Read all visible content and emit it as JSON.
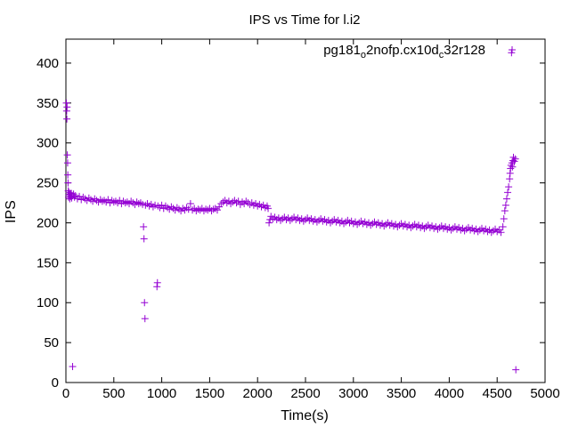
{
  "chart_data": {
    "type": "scatter",
    "title": "IPS vs Time for l.i2",
    "xlabel": "Time(s)",
    "ylabel": "IPS",
    "xlim": [
      0,
      5000
    ],
    "ylim": [
      0,
      430
    ],
    "xticks": [
      0,
      500,
      1000,
      1500,
      2000,
      2500,
      3000,
      3500,
      4000,
      4500,
      5000
    ],
    "yticks": [
      0,
      50,
      100,
      150,
      200,
      250,
      300,
      350,
      400
    ],
    "grid": false,
    "legend": {
      "placement": "top-right",
      "entries": [
        "pg181_o2nofp.cx10d_c32r128"
      ]
    },
    "legend_parts": [
      {
        "text": "pg181",
        "sub": false
      },
      {
        "text": "o",
        "sub": true
      },
      {
        "text": "2nofp.cx10d",
        "sub": false
      },
      {
        "text": "c",
        "sub": true
      },
      {
        "text": "32r128",
        "sub": false
      }
    ],
    "series": [
      {
        "name": "pg181_o2nofp.cx10d_c32r128",
        "color": "#9400d3",
        "marker": "plus",
        "points": [
          [
            5,
            350
          ],
          [
            8,
            340
          ],
          [
            10,
            330
          ],
          [
            12,
            345
          ],
          [
            15,
            285
          ],
          [
            18,
            275
          ],
          [
            20,
            260
          ],
          [
            22,
            250
          ],
          [
            25,
            240
          ],
          [
            28,
            232
          ],
          [
            30,
            235
          ],
          [
            35,
            238
          ],
          [
            40,
            230
          ],
          [
            45,
            236
          ],
          [
            50,
            233
          ],
          [
            55,
            237
          ],
          [
            60,
            231
          ],
          [
            65,
            234
          ],
          [
            70,
            20
          ],
          [
            80,
            236
          ],
          [
            90,
            232
          ],
          [
            100,
            234
          ],
          [
            120,
            230
          ],
          [
            140,
            233
          ],
          [
            160,
            229
          ],
          [
            180,
            232
          ],
          [
            200,
            230
          ],
          [
            220,
            228
          ],
          [
            240,
            231
          ],
          [
            260,
            229
          ],
          [
            280,
            227
          ],
          [
            300,
            230
          ],
          [
            320,
            228
          ],
          [
            340,
            226
          ],
          [
            360,
            229
          ],
          [
            380,
            227
          ],
          [
            400,
            228
          ],
          [
            420,
            226
          ],
          [
            440,
            229
          ],
          [
            460,
            225
          ],
          [
            480,
            228
          ],
          [
            500,
            226
          ],
          [
            520,
            227
          ],
          [
            540,
            225
          ],
          [
            560,
            228
          ],
          [
            580,
            224
          ],
          [
            600,
            227
          ],
          [
            620,
            225
          ],
          [
            640,
            226
          ],
          [
            660,
            224
          ],
          [
            680,
            227
          ],
          [
            700,
            225
          ],
          [
            720,
            223
          ],
          [
            740,
            226
          ],
          [
            760,
            224
          ],
          [
            780,
            225
          ],
          [
            800,
            223
          ],
          [
            810,
            195
          ],
          [
            815,
            180
          ],
          [
            820,
            100
          ],
          [
            825,
            80
          ],
          [
            830,
            222
          ],
          [
            850,
            224
          ],
          [
            870,
            221
          ],
          [
            890,
            223
          ],
          [
            910,
            220
          ],
          [
            930,
            222
          ],
          [
            950,
            120
          ],
          [
            955,
            125
          ],
          [
            960,
            221
          ],
          [
            980,
            219
          ],
          [
            1000,
            222
          ],
          [
            1020,
            218
          ],
          [
            1040,
            221
          ],
          [
            1060,
            219
          ],
          [
            1080,
            217
          ],
          [
            1100,
            220
          ],
          [
            1120,
            218
          ],
          [
            1140,
            216
          ],
          [
            1160,
            219
          ],
          [
            1180,
            217
          ],
          [
            1200,
            215
          ],
          [
            1220,
            218
          ],
          [
            1240,
            216
          ],
          [
            1260,
            219
          ],
          [
            1280,
            217
          ],
          [
            1300,
            224
          ],
          [
            1320,
            216
          ],
          [
            1340,
            218
          ],
          [
            1360,
            215
          ],
          [
            1380,
            217
          ],
          [
            1400,
            216
          ],
          [
            1420,
            218
          ],
          [
            1440,
            215
          ],
          [
            1460,
            217
          ],
          [
            1480,
            216
          ],
          [
            1500,
            218
          ],
          [
            1520,
            215
          ],
          [
            1540,
            217
          ],
          [
            1560,
            218
          ],
          [
            1580,
            216
          ],
          [
            1600,
            220
          ],
          [
            1620,
            224
          ],
          [
            1640,
            226
          ],
          [
            1660,
            228
          ],
          [
            1680,
            225
          ],
          [
            1700,
            227
          ],
          [
            1720,
            224
          ],
          [
            1740,
            226
          ],
          [
            1760,
            228
          ],
          [
            1780,
            225
          ],
          [
            1800,
            227
          ],
          [
            1820,
            223
          ],
          [
            1840,
            226
          ],
          [
            1860,
            224
          ],
          [
            1880,
            227
          ],
          [
            1900,
            225
          ],
          [
            1920,
            223
          ],
          [
            1940,
            225
          ],
          [
            1960,
            222
          ],
          [
            1980,
            224
          ],
          [
            2000,
            221
          ],
          [
            2020,
            223
          ],
          [
            2040,
            220
          ],
          [
            2060,
            222
          ],
          [
            2080,
            219
          ],
          [
            2100,
            221
          ],
          [
            2110,
            218
          ],
          [
            2120,
            200
          ],
          [
            2130,
            204
          ],
          [
            2140,
            208
          ],
          [
            2160,
            205
          ],
          [
            2180,
            207
          ],
          [
            2200,
            204
          ],
          [
            2220,
            206
          ],
          [
            2240,
            203
          ],
          [
            2260,
            205
          ],
          [
            2280,
            207
          ],
          [
            2300,
            204
          ],
          [
            2320,
            206
          ],
          [
            2340,
            203
          ],
          [
            2360,
            205
          ],
          [
            2380,
            207
          ],
          [
            2400,
            204
          ],
          [
            2420,
            206
          ],
          [
            2440,
            203
          ],
          [
            2460,
            205
          ],
          [
            2480,
            202
          ],
          [
            2500,
            204
          ],
          [
            2520,
            206
          ],
          [
            2540,
            203
          ],
          [
            2560,
            205
          ],
          [
            2580,
            202
          ],
          [
            2600,
            204
          ],
          [
            2620,
            201
          ],
          [
            2640,
            203
          ],
          [
            2660,
            205
          ],
          [
            2680,
            202
          ],
          [
            2700,
            204
          ],
          [
            2720,
            201
          ],
          [
            2740,
            203
          ],
          [
            2760,
            200
          ],
          [
            2780,
            202
          ],
          [
            2800,
            204
          ],
          [
            2820,
            201
          ],
          [
            2840,
            203
          ],
          [
            2860,
            200
          ],
          [
            2880,
            202
          ],
          [
            2900,
            199
          ],
          [
            2920,
            201
          ],
          [
            2940,
            203
          ],
          [
            2960,
            200
          ],
          [
            2980,
            202
          ],
          [
            3000,
            199
          ],
          [
            3020,
            201
          ],
          [
            3040,
            198
          ],
          [
            3060,
            200
          ],
          [
            3080,
            202
          ],
          [
            3100,
            199
          ],
          [
            3120,
            201
          ],
          [
            3140,
            198
          ],
          [
            3160,
            200
          ],
          [
            3180,
            197
          ],
          [
            3200,
            199
          ],
          [
            3220,
            201
          ],
          [
            3240,
            198
          ],
          [
            3260,
            200
          ],
          [
            3280,
            197
          ],
          [
            3300,
            199
          ],
          [
            3320,
            196
          ],
          [
            3340,
            198
          ],
          [
            3360,
            200
          ],
          [
            3380,
            197
          ],
          [
            3400,
            199
          ],
          [
            3420,
            196
          ],
          [
            3440,
            198
          ],
          [
            3460,
            195
          ],
          [
            3480,
            197
          ],
          [
            3500,
            199
          ],
          [
            3520,
            196
          ],
          [
            3540,
            198
          ],
          [
            3560,
            195
          ],
          [
            3580,
            197
          ],
          [
            3600,
            194
          ],
          [
            3620,
            196
          ],
          [
            3640,
            198
          ],
          [
            3660,
            195
          ],
          [
            3680,
            197
          ],
          [
            3700,
            194
          ],
          [
            3720,
            196
          ],
          [
            3740,
            193
          ],
          [
            3760,
            195
          ],
          [
            3780,
            197
          ],
          [
            3800,
            194
          ],
          [
            3820,
            196
          ],
          [
            3840,
            193
          ],
          [
            3860,
            195
          ],
          [
            3880,
            192
          ],
          [
            3900,
            194
          ],
          [
            3920,
            196
          ],
          [
            3940,
            193
          ],
          [
            3960,
            195
          ],
          [
            3980,
            192
          ],
          [
            4000,
            194
          ],
          [
            4020,
            191
          ],
          [
            4040,
            193
          ],
          [
            4060,
            195
          ],
          [
            4080,
            192
          ],
          [
            4100,
            194
          ],
          [
            4120,
            191
          ],
          [
            4140,
            193
          ],
          [
            4160,
            190
          ],
          [
            4180,
            192
          ],
          [
            4200,
            194
          ],
          [
            4220,
            191
          ],
          [
            4240,
            193
          ],
          [
            4260,
            190
          ],
          [
            4280,
            192
          ],
          [
            4300,
            189
          ],
          [
            4320,
            191
          ],
          [
            4340,
            193
          ],
          [
            4360,
            190
          ],
          [
            4380,
            192
          ],
          [
            4400,
            189
          ],
          [
            4420,
            191
          ],
          [
            4440,
            188
          ],
          [
            4460,
            190
          ],
          [
            4480,
            192
          ],
          [
            4500,
            189
          ],
          [
            4520,
            191
          ],
          [
            4540,
            188
          ],
          [
            4560,
            195
          ],
          [
            4570,
            205
          ],
          [
            4580,
            215
          ],
          [
            4590,
            222
          ],
          [
            4600,
            230
          ],
          [
            4610,
            238
          ],
          [
            4620,
            245
          ],
          [
            4630,
            255
          ],
          [
            4635,
            262
          ],
          [
            4640,
            268
          ],
          [
            4645,
            272
          ],
          [
            4650,
            413
          ],
          [
            4655,
            275
          ],
          [
            4660,
            270
          ],
          [
            4665,
            278
          ],
          [
            4670,
            282
          ],
          [
            4680,
            277
          ],
          [
            4690,
            280
          ],
          [
            4695,
            16
          ]
        ]
      }
    ]
  }
}
